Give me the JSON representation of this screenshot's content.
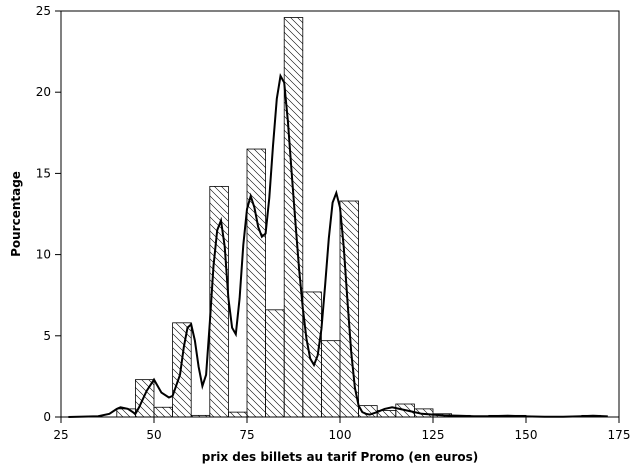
{
  "chart_data": {
    "type": "bar",
    "xlabel": "prix des billets au tarif Promo (en euros)",
    "ylabel": "Pourcentage",
    "xlim": [
      25,
      175
    ],
    "ylim": [
      0,
      25
    ],
    "x_ticks": [
      25,
      50,
      75,
      100,
      125,
      150,
      175
    ],
    "y_ticks": [
      0,
      5,
      10,
      15,
      20,
      25
    ],
    "bin_width": 5,
    "bars": [
      {
        "x_start": 40,
        "value": 0.5
      },
      {
        "x_start": 45,
        "value": 2.3
      },
      {
        "x_start": 50,
        "value": 0.6
      },
      {
        "x_start": 55,
        "value": 5.8
      },
      {
        "x_start": 60,
        "value": 0.1
      },
      {
        "x_start": 65,
        "value": 14.2
      },
      {
        "x_start": 70,
        "value": 0.3
      },
      {
        "x_start": 75,
        "value": 16.5
      },
      {
        "x_start": 80,
        "value": 6.6
      },
      {
        "x_start": 85,
        "value": 24.6
      },
      {
        "x_start": 90,
        "value": 7.7
      },
      {
        "x_start": 95,
        "value": 4.7
      },
      {
        "x_start": 100,
        "value": 13.3
      },
      {
        "x_start": 105,
        "value": 0.7
      },
      {
        "x_start": 110,
        "value": 0.4
      },
      {
        "x_start": 115,
        "value": 0.8
      },
      {
        "x_start": 120,
        "value": 0.5
      },
      {
        "x_start": 125,
        "value": 0.2
      },
      {
        "x_start": 130,
        "value": 0.1
      },
      {
        "x_start": 140,
        "value": 0.1
      },
      {
        "x_start": 145,
        "value": 0.1
      },
      {
        "x_start": 165,
        "value": 0.1
      }
    ],
    "density_curve": {
      "x": [
        27,
        35,
        38,
        40,
        41,
        43,
        45,
        46,
        48,
        50,
        52,
        54,
        55,
        57,
        58,
        59,
        60,
        61,
        62,
        63,
        64,
        65,
        66,
        67,
        68,
        69,
        70,
        71,
        72,
        73,
        74,
        75,
        76,
        77,
        78,
        79,
        80,
        81,
        82,
        83,
        84,
        85,
        86,
        87,
        88,
        89,
        90,
        91,
        92,
        93,
        94,
        95,
        96,
        97,
        98,
        99,
        100,
        101,
        102,
        103,
        104,
        105,
        106,
        107,
        108,
        110,
        112,
        114,
        116,
        118,
        120,
        122,
        125,
        128,
        132,
        136,
        140,
        145,
        150,
        155,
        160,
        165,
        168,
        172
      ],
      "y": [
        0,
        0.05,
        0.2,
        0.5,
        0.6,
        0.5,
        0.2,
        0.6,
        1.6,
        2.3,
        1.5,
        1.2,
        1.3,
        2.6,
        4.3,
        5.5,
        5.7,
        4.7,
        3.1,
        1.9,
        2.6,
        5.8,
        9.3,
        11.5,
        12.1,
        10.5,
        7.3,
        5.5,
        5.1,
        7.3,
        10.6,
        12.8,
        13.6,
        12.9,
        11.7,
        11.1,
        11.3,
        13.5,
        16.7,
        19.6,
        21.0,
        20.6,
        18.2,
        15.1,
        12.0,
        9.1,
        6.7,
        4.8,
        3.6,
        3.2,
        3.8,
        5.4,
        8.1,
        11.0,
        13.2,
        13.8,
        12.9,
        10.5,
        7.2,
        4.0,
        1.8,
        0.7,
        0.3,
        0.2,
        0.15,
        0.3,
        0.5,
        0.6,
        0.5,
        0.4,
        0.3,
        0.2,
        0.15,
        0.1,
        0.08,
        0.05,
        0.05,
        0.08,
        0.04,
        0.02,
        0.02,
        0.05,
        0.08,
        0.04
      ]
    }
  }
}
